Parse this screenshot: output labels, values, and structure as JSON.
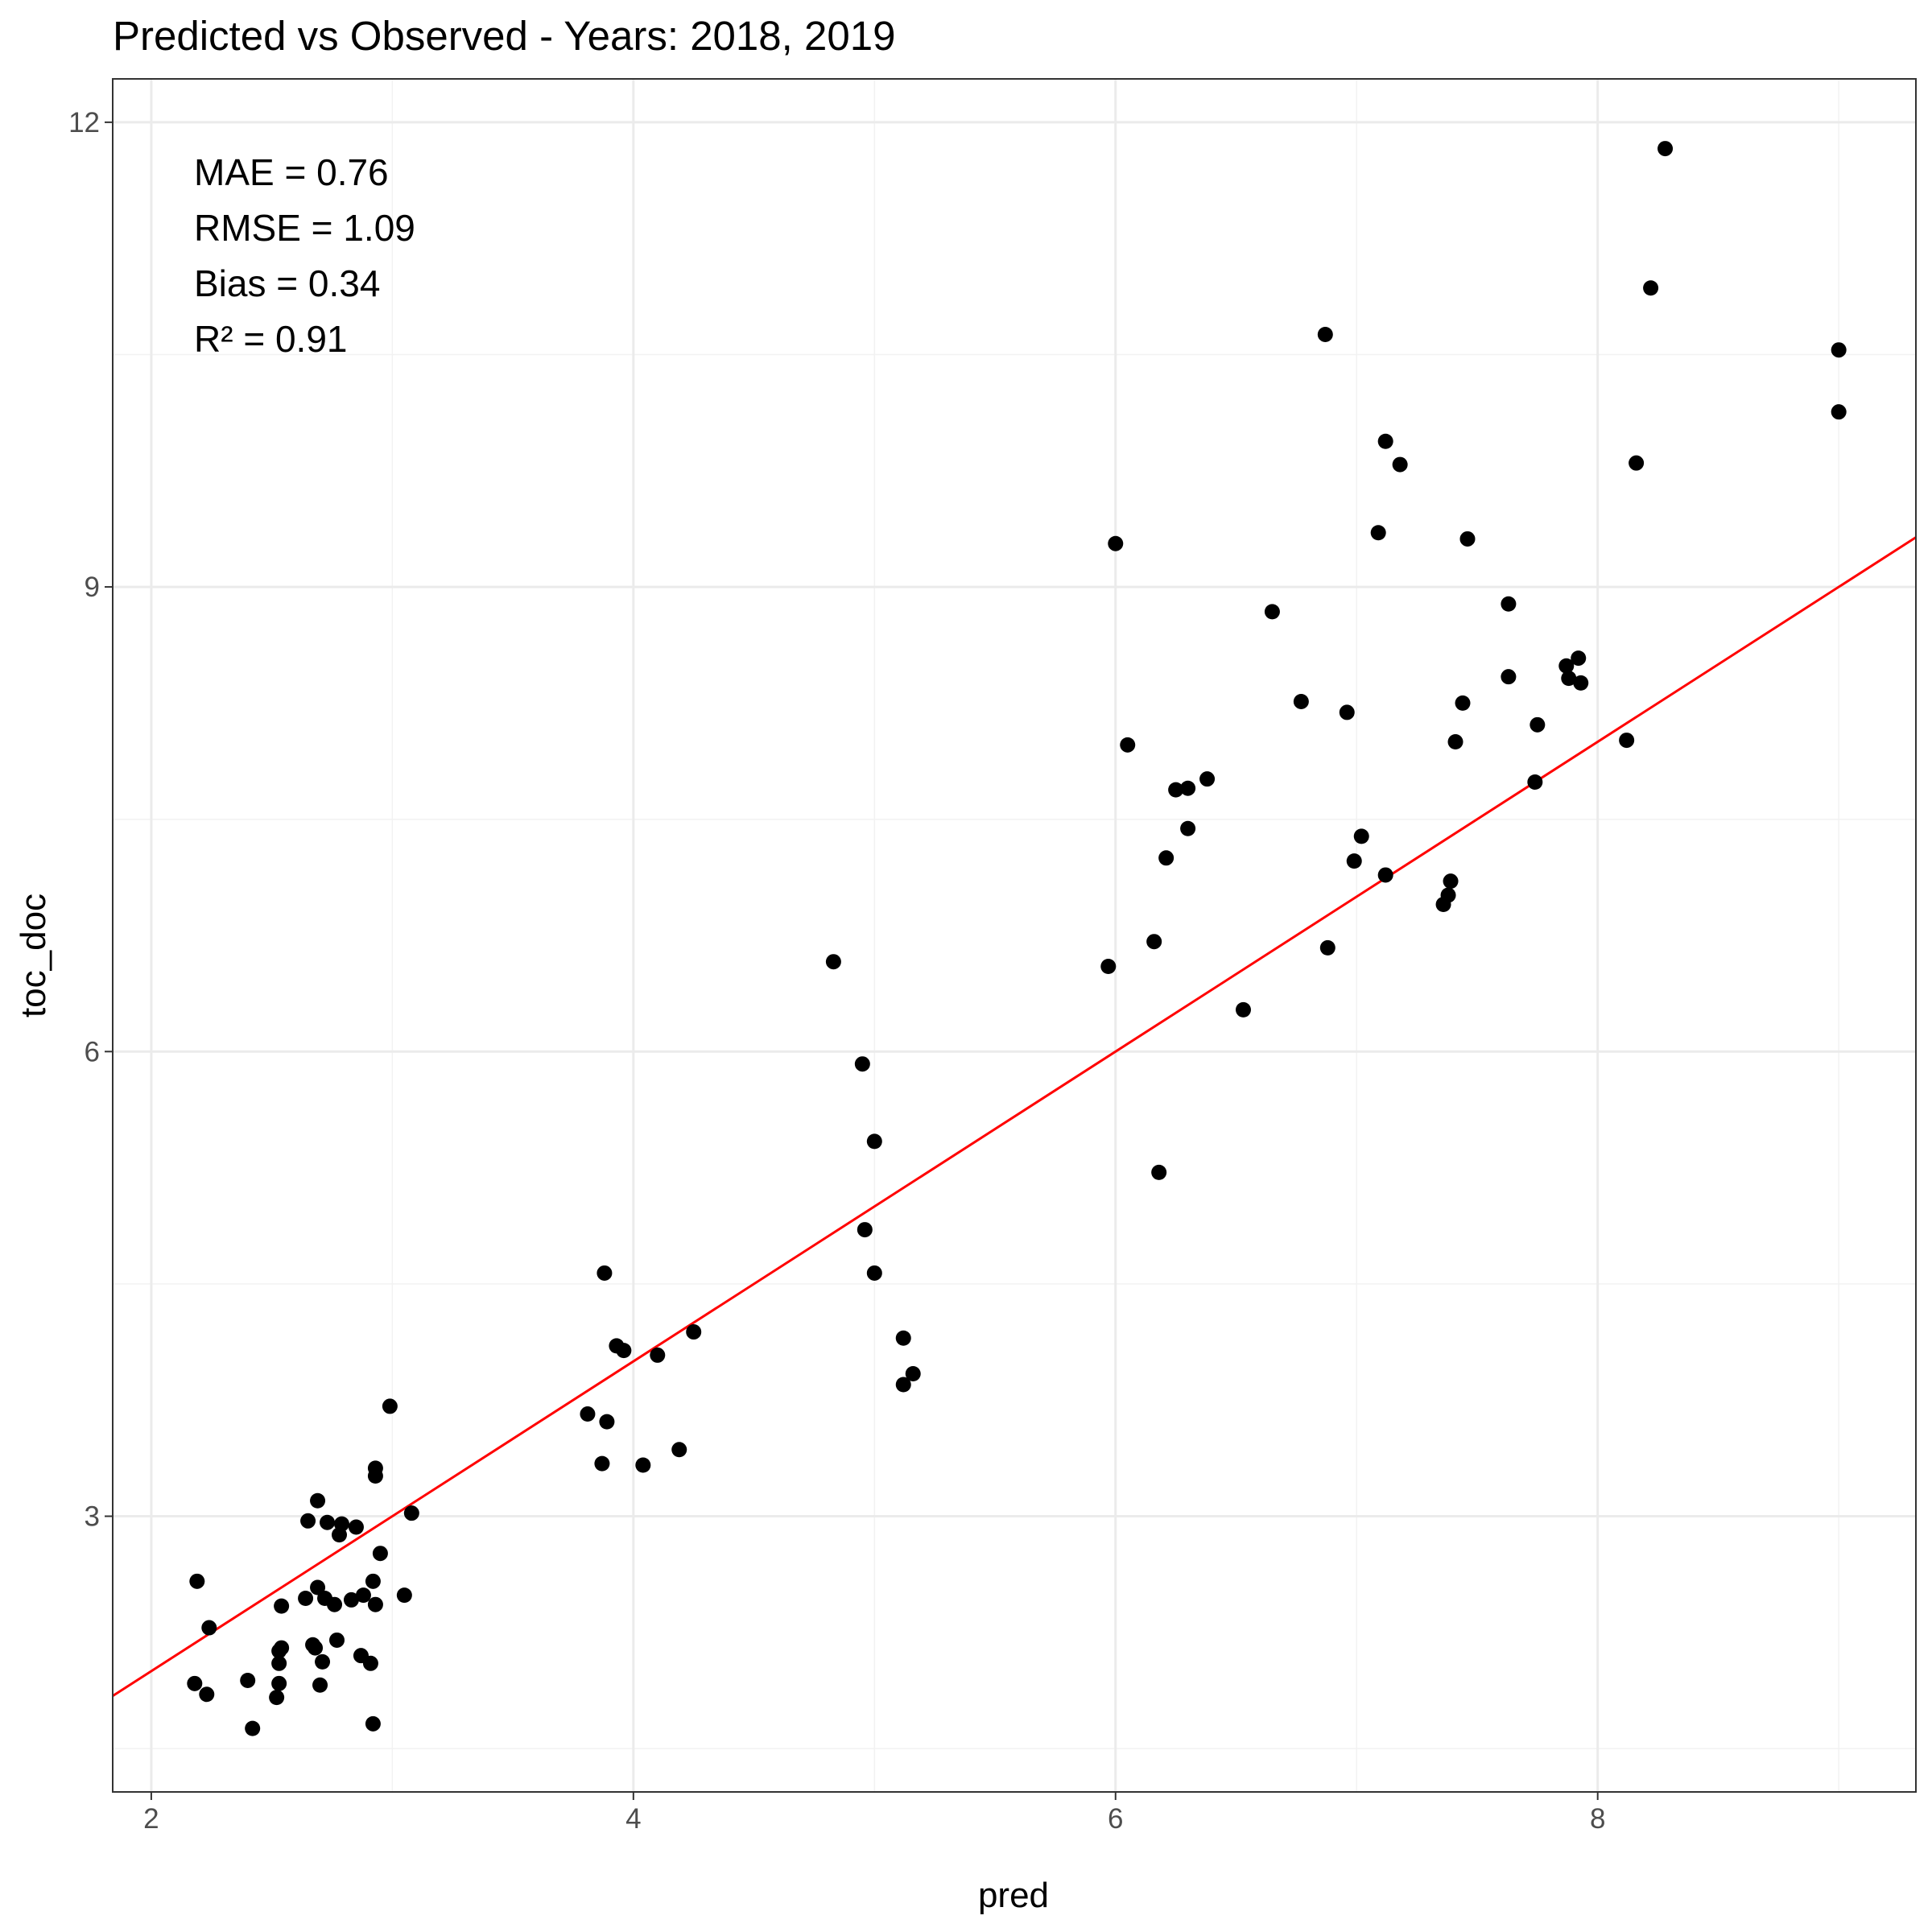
{
  "chart_data": {
    "type": "scatter",
    "title": "Predicted vs Observed - Years: 2018, 2019",
    "xlabel": "pred",
    "ylabel": "toc_doc",
    "xlim": [
      1.84,
      9.32
    ],
    "ylim": [
      1.22,
      12.28
    ],
    "x_ticks": [
      2,
      4,
      6,
      8
    ],
    "y_ticks": [
      3,
      6,
      9,
      12
    ],
    "x_tick_labels": [
      "2",
      "4",
      "6",
      "8"
    ],
    "y_tick_labels": [
      "3",
      "6",
      "9",
      "12"
    ],
    "grid": true,
    "legend": "none",
    "stats": [
      "MAE = 0.76",
      "RMSE = 1.09",
      "Bias = 0.34",
      "R² = 0.91"
    ],
    "reference_line": {
      "slope": 1,
      "intercept": 0,
      "color": "#ff0000"
    },
    "point_color": "#000000",
    "points": [
      [
        2.18,
        1.92
      ],
      [
        2.19,
        2.58
      ],
      [
        2.23,
        1.85
      ],
      [
        2.24,
        2.28
      ],
      [
        2.4,
        1.94
      ],
      [
        2.42,
        1.63
      ],
      [
        2.52,
        1.83
      ],
      [
        2.53,
        2.05
      ],
      [
        2.53,
        1.92
      ],
      [
        2.53,
        2.13
      ],
      [
        2.54,
        2.15
      ],
      [
        2.54,
        2.42
      ],
      [
        2.64,
        2.47
      ],
      [
        2.65,
        2.97
      ],
      [
        2.67,
        2.17
      ],
      [
        2.68,
        2.15
      ],
      [
        2.69,
        2.54
      ],
      [
        2.69,
        3.1
      ],
      [
        2.7,
        1.91
      ],
      [
        2.71,
        2.06
      ],
      [
        2.72,
        2.47
      ],
      [
        2.73,
        2.96
      ],
      [
        2.76,
        2.43
      ],
      [
        2.77,
        2.2
      ],
      [
        2.78,
        2.88
      ],
      [
        2.79,
        2.95
      ],
      [
        2.83,
        2.46
      ],
      [
        2.85,
        2.93
      ],
      [
        2.87,
        2.1
      ],
      [
        2.88,
        2.49
      ],
      [
        2.91,
        2.05
      ],
      [
        2.92,
        2.58
      ],
      [
        2.92,
        1.66
      ],
      [
        2.93,
        3.31
      ],
      [
        2.93,
        3.26
      ],
      [
        2.93,
        2.43
      ],
      [
        2.95,
        2.76
      ],
      [
        2.99,
        3.71
      ],
      [
        3.05,
        2.49
      ],
      [
        3.08,
        3.02
      ],
      [
        3.81,
        3.66
      ],
      [
        3.87,
        3.34
      ],
      [
        3.88,
        4.57
      ],
      [
        3.89,
        3.61
      ],
      [
        3.93,
        4.1
      ],
      [
        3.96,
        4.07
      ],
      [
        4.04,
        3.33
      ],
      [
        4.1,
        4.04
      ],
      [
        4.19,
        3.43
      ],
      [
        4.25,
        4.19
      ],
      [
        4.83,
        6.58
      ],
      [
        4.95,
        5.92
      ],
      [
        4.96,
        4.85
      ],
      [
        5.0,
        4.57
      ],
      [
        5.0,
        5.42
      ],
      [
        5.12,
        3.85
      ],
      [
        5.12,
        4.15
      ],
      [
        5.16,
        3.92
      ],
      [
        5.97,
        6.55
      ],
      [
        6.0,
        9.28
      ],
      [
        6.05,
        7.98
      ],
      [
        6.16,
        6.71
      ],
      [
        6.18,
        5.22
      ],
      [
        6.21,
        7.25
      ],
      [
        6.25,
        7.69
      ],
      [
        6.3,
        7.7
      ],
      [
        6.3,
        7.44
      ],
      [
        6.38,
        7.76
      ],
      [
        6.53,
        6.27
      ],
      [
        6.65,
        8.84
      ],
      [
        6.77,
        8.26
      ],
      [
        6.87,
        10.63
      ],
      [
        6.88,
        6.67
      ],
      [
        6.96,
        8.19
      ],
      [
        6.99,
        7.23
      ],
      [
        7.02,
        7.39
      ],
      [
        7.09,
        9.35
      ],
      [
        7.12,
        9.94
      ],
      [
        7.12,
        7.14
      ],
      [
        7.18,
        9.79
      ],
      [
        7.36,
        6.95
      ],
      [
        7.38,
        7.01
      ],
      [
        7.39,
        7.1
      ],
      [
        7.41,
        8.0
      ],
      [
        7.44,
        8.25
      ],
      [
        7.46,
        9.31
      ],
      [
        7.63,
        8.89
      ],
      [
        7.63,
        8.42
      ],
      [
        7.74,
        7.74
      ],
      [
        7.75,
        8.11
      ],
      [
        7.87,
        8.49
      ],
      [
        7.88,
        8.41
      ],
      [
        7.92,
        8.54
      ],
      [
        7.93,
        8.38
      ],
      [
        8.12,
        8.01
      ],
      [
        8.16,
        9.8
      ],
      [
        8.22,
        10.93
      ],
      [
        8.28,
        11.83
      ],
      [
        9.0,
        10.13
      ],
      [
        9.0,
        10.53
      ]
    ]
  }
}
